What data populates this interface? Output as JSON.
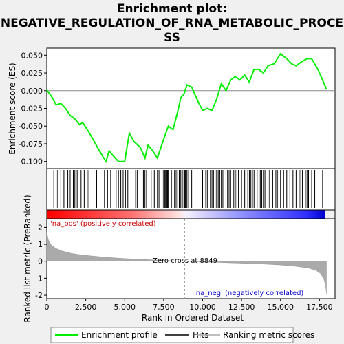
{
  "chart_data": {
    "type": "line",
    "title_line1": "Enrichment plot:",
    "title_line2": "NEGATIVE_REGULATION_OF_RNA_METABOLIC_PROCE",
    "title_line3": "SS",
    "es_panel": {
      "ylabel": "Enrichment score (ES)",
      "ylim": [
        -0.11,
        0.06
      ],
      "yticks": [
        0.05,
        0.025,
        0.0,
        -0.025,
        -0.05,
        -0.075,
        -0.1
      ],
      "ytick_labels": [
        "0.050",
        "0.025",
        "0.000",
        "-0.025",
        "-0.050",
        "-0.075",
        "-0.100"
      ],
      "xlim": [
        0,
        18500
      ],
      "line_color": "#00ee00",
      "es_profile": [
        [
          0,
          0.001
        ],
        [
          300,
          -0.008
        ],
        [
          600,
          -0.02
        ],
        [
          900,
          -0.018
        ],
        [
          1200,
          -0.025
        ],
        [
          1500,
          -0.035
        ],
        [
          1800,
          -0.04
        ],
        [
          2100,
          -0.048
        ],
        [
          2300,
          -0.045
        ],
        [
          2600,
          -0.055
        ],
        [
          3000,
          -0.07
        ],
        [
          3300,
          -0.082
        ],
        [
          3600,
          -0.093
        ],
        [
          3800,
          -0.1
        ],
        [
          4000,
          -0.085
        ],
        [
          4300,
          -0.093
        ],
        [
          4600,
          -0.1
        ],
        [
          5000,
          -0.1
        ],
        [
          5300,
          -0.06
        ],
        [
          5600,
          -0.072
        ],
        [
          6000,
          -0.08
        ],
        [
          6300,
          -0.095
        ],
        [
          6500,
          -0.077
        ],
        [
          6800,
          -0.085
        ],
        [
          7100,
          -0.095
        ],
        [
          7400,
          -0.075
        ],
        [
          7800,
          -0.05
        ],
        [
          8100,
          -0.055
        ],
        [
          8400,
          -0.03
        ],
        [
          8600,
          -0.01
        ],
        [
          8800,
          -0.005
        ],
        [
          9000,
          0.008
        ],
        [
          9300,
          0.005
        ],
        [
          9700,
          -0.015
        ],
        [
          10000,
          -0.028
        ],
        [
          10300,
          -0.025
        ],
        [
          10600,
          -0.028
        ],
        [
          10900,
          -0.012
        ],
        [
          11200,
          0.01
        ],
        [
          11500,
          0.0
        ],
        [
          11800,
          0.015
        ],
        [
          12100,
          0.02
        ],
        [
          12400,
          0.015
        ],
        [
          12700,
          0.022
        ],
        [
          13000,
          0.012
        ],
        [
          13300,
          0.03
        ],
        [
          13600,
          0.03
        ],
        [
          13900,
          0.025
        ],
        [
          14200,
          0.035
        ],
        [
          14600,
          0.038
        ],
        [
          15000,
          0.052
        ],
        [
          15400,
          0.045
        ],
        [
          15700,
          0.038
        ],
        [
          16000,
          0.035
        ],
        [
          16300,
          0.04
        ],
        [
          16700,
          0.045
        ],
        [
          17000,
          0.045
        ],
        [
          17400,
          0.03
        ],
        [
          17700,
          0.015
        ],
        [
          17950,
          0.002
        ]
      ],
      "zero_crossing": 8849
    },
    "hits": [
      450,
      600,
      700,
      900,
      1100,
      1350,
      1500,
      1700,
      1800,
      1950,
      2200,
      2400,
      2600,
      2700,
      3200,
      3700,
      3900,
      4100,
      4450,
      4600,
      4750,
      4900,
      5050,
      5200,
      5700,
      5800,
      6200,
      6300,
      6400,
      6700,
      6900,
      7100,
      7200,
      7400,
      7500,
      7550,
      7600,
      7650,
      7700,
      7750,
      7800,
      8000,
      8100,
      8200,
      8300,
      8400,
      8500,
      8600,
      8700,
      8800,
      8850,
      8900,
      8950,
      9000,
      9100,
      9300,
      10000,
      10200,
      10300,
      10500,
      10600,
      10700,
      10800,
      10900,
      11000,
      11100,
      11200,
      11300,
      11500,
      11600,
      11700,
      11800,
      12000,
      12100,
      12200,
      12300,
      12500,
      12700,
      12900,
      13000,
      13100,
      13200,
      13300,
      13500,
      13700,
      13800,
      13900,
      14000,
      14200,
      14300,
      14500,
      14700,
      14800,
      14900,
      15000,
      15200,
      15400,
      15600,
      15800,
      16000,
      16200,
      16300,
      16400,
      16600,
      16700,
      16800,
      17000,
      17200,
      17700
    ],
    "rank_panel": {
      "ylabel": "Ranked list metric (PreRanked)",
      "xlabel": "Rank in Ordered Dataset",
      "ylim": [
        -2.2,
        2.5
      ],
      "yticks": [
        2,
        1,
        0,
        -1,
        -2
      ],
      "xticks": [
        0,
        2500,
        5000,
        7500,
        10000,
        12500,
        15000,
        17500
      ],
      "xtick_labels": [
        "0",
        "2,500",
        "5,000",
        "7,500",
        "10,000",
        "12,500",
        "15,000",
        "17,500"
      ],
      "xlim": [
        0,
        18500
      ],
      "metric_curve": [
        [
          0,
          1.7
        ],
        [
          100,
          1.25
        ],
        [
          300,
          0.95
        ],
        [
          600,
          0.75
        ],
        [
          1000,
          0.6
        ],
        [
          1500,
          0.48
        ],
        [
          2000,
          0.4
        ],
        [
          3000,
          0.3
        ],
        [
          4000,
          0.22
        ],
        [
          5000,
          0.16
        ],
        [
          6000,
          0.11
        ],
        [
          7000,
          0.07
        ],
        [
          8000,
          0.03
        ],
        [
          8849,
          0.0
        ],
        [
          10000,
          -0.04
        ],
        [
          11000,
          -0.07
        ],
        [
          12000,
          -0.1
        ],
        [
          13000,
          -0.13
        ],
        [
          14000,
          -0.17
        ],
        [
          15000,
          -0.22
        ],
        [
          16000,
          -0.3
        ],
        [
          16800,
          -0.4
        ],
        [
          17300,
          -0.55
        ],
        [
          17600,
          -0.75
        ],
        [
          17800,
          -1.1
        ],
        [
          17900,
          -1.5
        ],
        [
          17950,
          -1.9
        ]
      ],
      "pos_label": "'na_pos' (positively correlated)",
      "neg_label": "'na_neg' (negatively correlated)",
      "zero_cross_label": "Zero cross at 8849"
    },
    "legend": {
      "placement": "bottom",
      "entries": [
        {
          "name": "Enrichment profile",
          "color": "#00ee00"
        },
        {
          "name": "Hits",
          "color": "#000000"
        },
        {
          "name": "Ranking metric scores",
          "color": "#aaaaaa"
        }
      ]
    }
  }
}
